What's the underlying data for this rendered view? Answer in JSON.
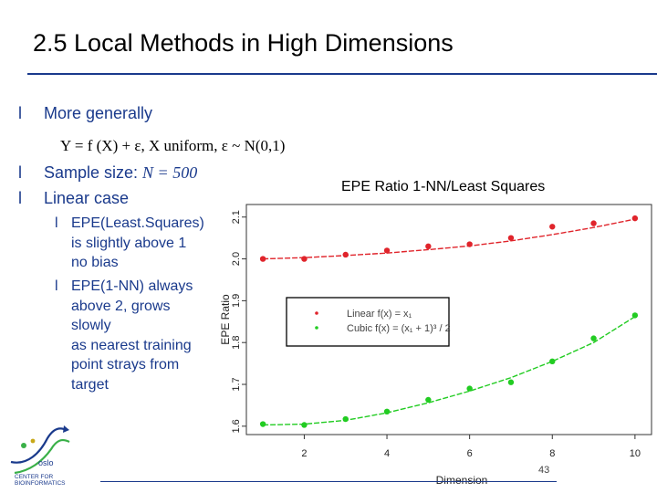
{
  "slide": {
    "title": "2.5 Local Methods in High Dimensions",
    "bullet_glyph": "l",
    "bullets": [
      {
        "label": "More generally"
      },
      {
        "label": "Sample size: ",
        "formula": "N = 500"
      },
      {
        "label": "Linear case"
      }
    ],
    "formula": "Y = f (X) + ε,   X uniform,  ε ~ N(0,1)",
    "sub_bullets": [
      {
        "lines": [
          "EPE(Least.Squares)",
          "is slightly above 1",
          "no bias"
        ]
      },
      {
        "lines": [
          "EPE(1-NN) always",
          "above 2, grows",
          "slowly",
          "as nearest training",
          "point strays from",
          "target"
        ]
      }
    ],
    "page_number": "43"
  },
  "logo": {
    "text_line1": "CENTER FOR",
    "text_line2": "BIOINFORMATICS",
    "mark": "oslo"
  },
  "chart_data": {
    "type": "scatter",
    "title": "EPE Ratio 1-NN/Least Squares",
    "xlabel": "Dimension",
    "ylabel": "EPE Ratio",
    "x_ticks": [
      2,
      4,
      6,
      8,
      10
    ],
    "y_ticks": [
      1.6,
      1.7,
      1.8,
      1.9,
      2.0,
      2.1
    ],
    "ylim": [
      1.58,
      2.13
    ],
    "xlim": [
      0.6,
      10.4
    ],
    "grid": false,
    "legend_placement": "center-left",
    "series": [
      {
        "name": "Linear f(x) = x₁",
        "color": "#e0242b",
        "x": [
          1,
          2,
          3,
          4,
          5,
          6,
          7,
          8,
          9,
          10
        ],
        "y": [
          2.0,
          2.0,
          2.01,
          2.02,
          2.03,
          2.035,
          2.05,
          2.077,
          2.085,
          2.097
        ],
        "smooth": [
          2.0,
          2.003,
          2.008,
          2.014,
          2.022,
          2.031,
          2.043,
          2.058,
          2.075,
          2.095
        ]
      },
      {
        "name": "Cubic f(x) = (x₁ + 1)³ / 2",
        "color": "#22cc22",
        "x": [
          1,
          2,
          3,
          4,
          5,
          6,
          7,
          8,
          9,
          10
        ],
        "y": [
          1.605,
          1.603,
          1.617,
          1.635,
          1.663,
          1.69,
          1.705,
          1.755,
          1.81,
          1.865
        ],
        "smooth": [
          1.603,
          1.605,
          1.614,
          1.632,
          1.656,
          1.684,
          1.716,
          1.755,
          1.8,
          1.862
        ]
      }
    ]
  }
}
